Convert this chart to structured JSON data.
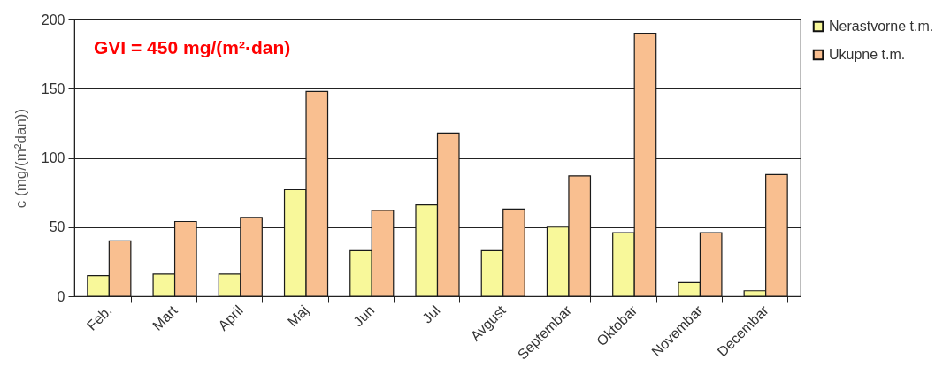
{
  "chart_data": {
    "type": "bar",
    "ylabel": "c (mg/(m²dan))",
    "annotations": [
      "GVI = 450 mg/(m²·dan)"
    ],
    "categories": [
      "Feb.",
      "Mart",
      "April",
      "Maj",
      "Jun",
      "Jul",
      "Avgust",
      "Septembar",
      "Oktobar",
      "Novembar",
      "Decembar"
    ],
    "series": [
      {
        "name": "Nerastvorne t.m.",
        "color": "#f8f89a",
        "values": [
          15,
          16,
          16,
          77,
          33,
          66,
          33,
          50,
          46,
          10,
          4
        ]
      },
      {
        "name": "Ukupne t.m.",
        "color": "#f9bf90",
        "values": [
          40,
          54,
          57,
          148,
          62,
          118,
          63,
          87,
          190,
          46,
          88
        ]
      }
    ],
    "ylim": [
      0,
      200
    ],
    "yticks": [
      0,
      50,
      100,
      150,
      200
    ],
    "grid": "y",
    "legend": "top right"
  }
}
